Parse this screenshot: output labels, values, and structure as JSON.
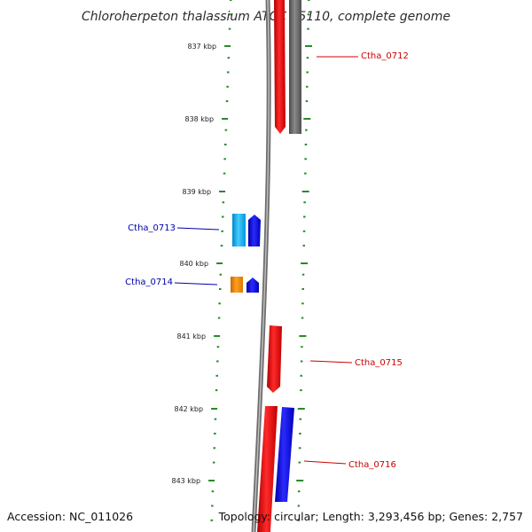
{
  "title": "Chloroherpeton thalassium ATCC 35110, complete genome",
  "footer": {
    "accession": "Accession: NC_011026",
    "summary": "Topology: circular; Length: 3,293,456 bp; Genes: 2,757"
  },
  "ruler": {
    "labels": [
      "837 kbp",
      "838 kbp",
      "839 kbp",
      "840 kbp",
      "841 kbp",
      "842 kbp",
      "843 kbp"
    ]
  },
  "genes": [
    {
      "id": "Ctha_0712",
      "strand": "forward",
      "label_color": "#cc0000"
    },
    {
      "id": "Ctha_0713",
      "strand": "reverse",
      "label_color": "#0000aa"
    },
    {
      "id": "Ctha_0714",
      "strand": "reverse",
      "label_color": "#0000aa"
    },
    {
      "id": "Ctha_0715",
      "strand": "forward",
      "label_color": "#cc0000"
    },
    {
      "id": "Ctha_0716",
      "strand": "forward",
      "label_color": "#cc0000"
    }
  ],
  "colors": {
    "backbone": "#777777",
    "ticks": "#2a8a2a",
    "forward_cds": "#ee0000",
    "reverse_cds": "#0000ee",
    "gene_feature": "#666666",
    "cyan_feature": "#22aaee",
    "orange_feature": "#ee8800"
  }
}
